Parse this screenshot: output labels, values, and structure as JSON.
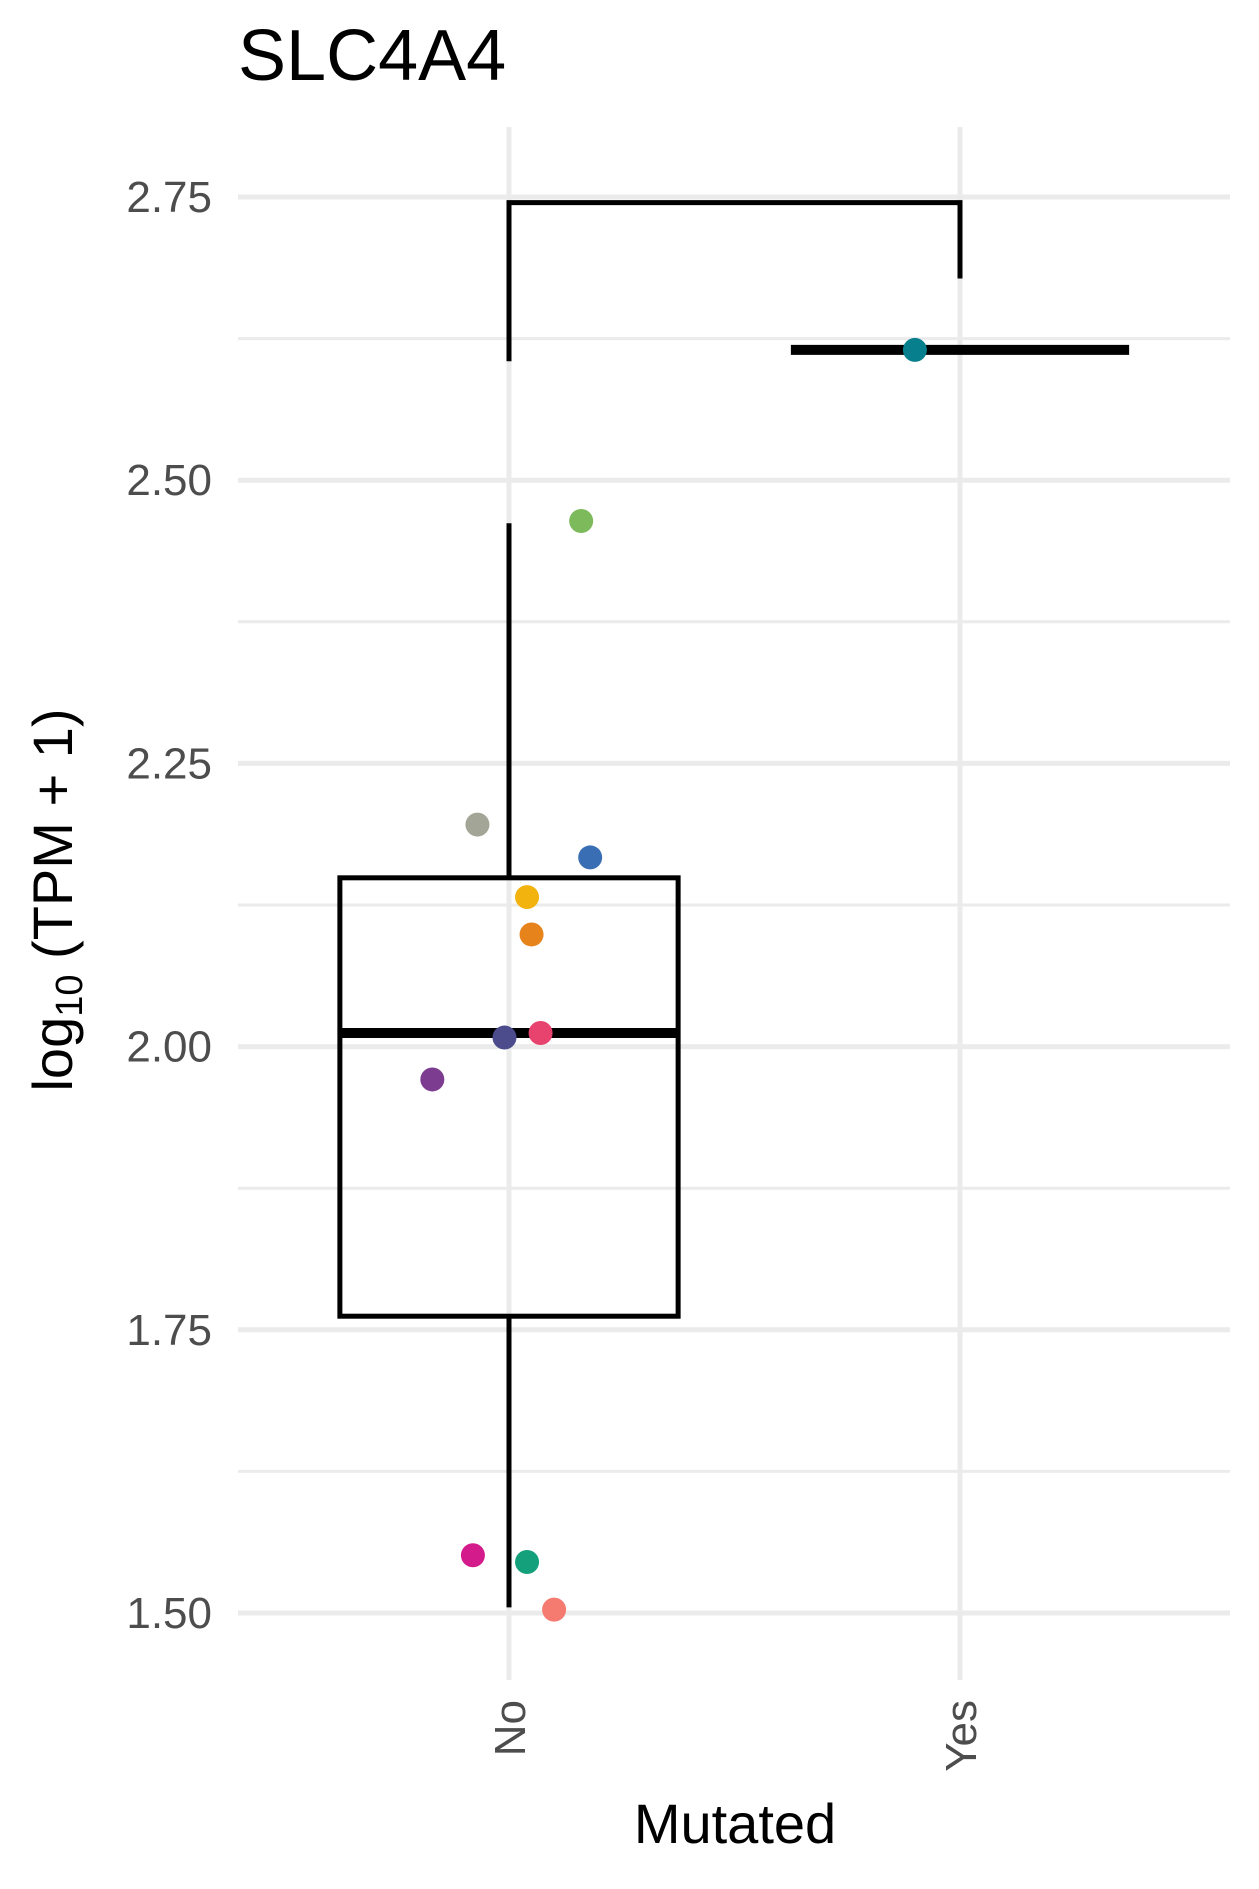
{
  "chart_data": {
    "type": "box",
    "title": "SLC4A4",
    "xlabel": "Mutated",
    "ylabel_main": "log",
    "ylabel_sub": "10",
    "ylabel_rest": " (TPM + 1)",
    "ylim": [
      1.45,
      2.8
    ],
    "yticks": [
      "1.50",
      "1.75",
      "2.00",
      "2.25",
      "2.50",
      "2.75"
    ],
    "categories": [
      "No",
      "Yes"
    ],
    "grid": true,
    "boxes": [
      {
        "category": "No",
        "lower_whisker": 1.505,
        "q1": 1.762,
        "median": 2.012,
        "q3": 2.149,
        "upper_whisker": 2.462
      },
      {
        "category": "Yes",
        "lower_whisker": 2.615,
        "q1": 2.615,
        "median": 2.615,
        "q3": 2.615,
        "upper_whisker": 2.615
      }
    ],
    "points": [
      {
        "category": "No",
        "jitter": 0.16,
        "y": 2.464,
        "color": "#7dba5b"
      },
      {
        "category": "No",
        "jitter": -0.07,
        "y": 2.196,
        "color": "#a3a596"
      },
      {
        "category": "No",
        "jitter": 0.18,
        "y": 2.167,
        "color": "#3a6eb4"
      },
      {
        "category": "No",
        "jitter": 0.04,
        "y": 2.132,
        "color": "#f3b30f"
      },
      {
        "category": "No",
        "jitter": 0.05,
        "y": 2.099,
        "color": "#e6831a"
      },
      {
        "category": "No",
        "jitter": -0.01,
        "y": 2.008,
        "color": "#4c4c8c"
      },
      {
        "category": "No",
        "jitter": 0.07,
        "y": 2.012,
        "color": "#e8426f"
      },
      {
        "category": "No",
        "jitter": -0.17,
        "y": 1.971,
        "color": "#7c3d91"
      },
      {
        "category": "No",
        "jitter": -0.08,
        "y": 1.551,
        "color": "#d41b8b"
      },
      {
        "category": "No",
        "jitter": 0.04,
        "y": 1.545,
        "color": "#13a07a"
      },
      {
        "category": "No",
        "jitter": 0.1,
        "y": 1.503,
        "color": "#f57a70"
      },
      {
        "category": "Yes",
        "jitter": -0.1,
        "y": 2.615,
        "color": "#087f8d"
      }
    ],
    "comparison_bracket": {
      "from": "No",
      "to": "Yes",
      "y_top": 2.745,
      "y_left_end": 2.605,
      "y_right_end": 2.678
    }
  }
}
